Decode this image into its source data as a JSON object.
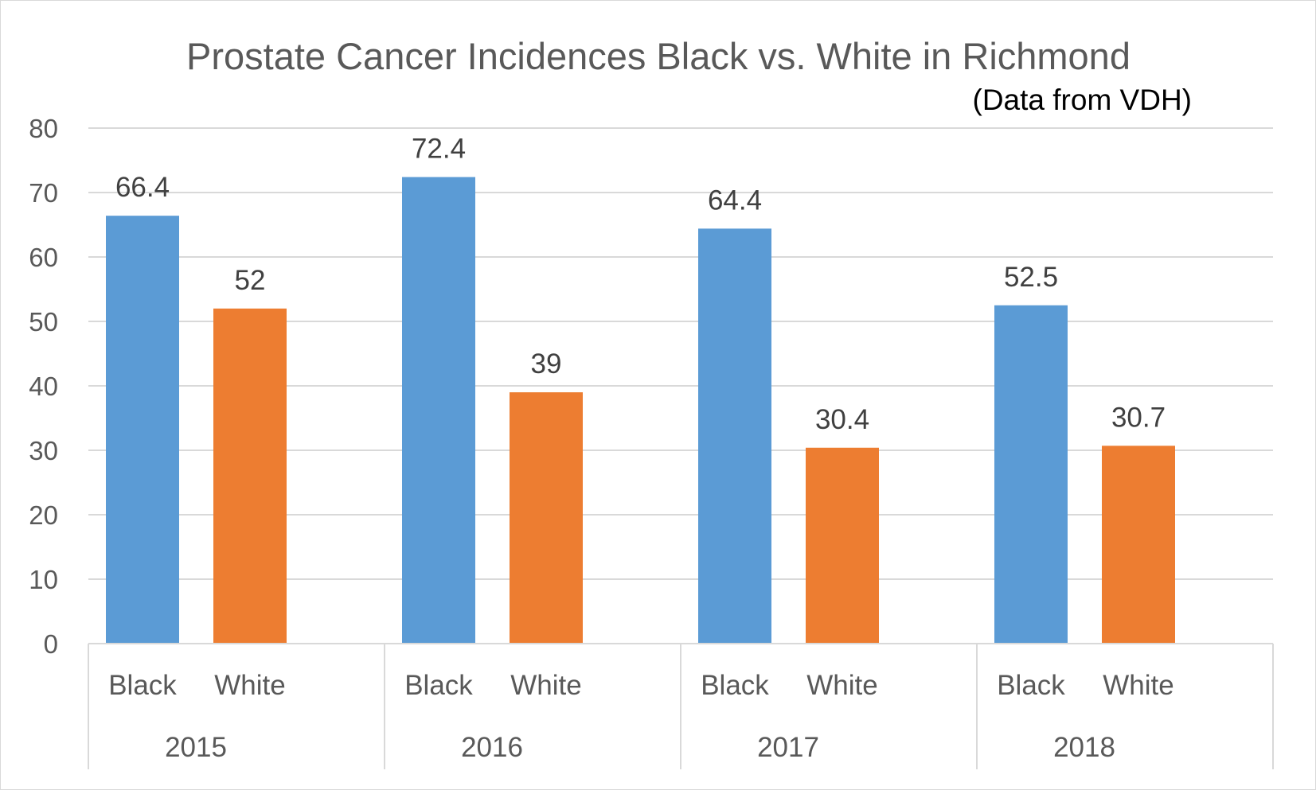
{
  "chart_data": {
    "type": "bar",
    "title": "Prostate Cancer Incidences Black vs. White in Richmond",
    "subtitle": "(Data from VDH)",
    "ylim": [
      0,
      80
    ],
    "yticks": [
      0,
      10,
      20,
      30,
      40,
      50,
      60,
      70,
      80
    ],
    "grid": true,
    "legend": "none",
    "groups": [
      {
        "year": "2015",
        "bars": [
          {
            "category": "Black",
            "value": 66.4,
            "value_label": "66.4"
          },
          {
            "category": "White",
            "value": 52,
            "value_label": "52"
          }
        ]
      },
      {
        "year": "2016",
        "bars": [
          {
            "category": "Black",
            "value": 72.4,
            "value_label": "72.4"
          },
          {
            "category": "White",
            "value": 39,
            "value_label": "39"
          }
        ]
      },
      {
        "year": "2017",
        "bars": [
          {
            "category": "Black",
            "value": 64.4,
            "value_label": "64.4"
          },
          {
            "category": "White",
            "value": 30.4,
            "value_label": "30.4"
          }
        ]
      },
      {
        "year": "2018",
        "bars": [
          {
            "category": "Black",
            "value": 52.5,
            "value_label": "52.5"
          },
          {
            "category": "White",
            "value": 30.7,
            "value_label": "30.7"
          }
        ]
      }
    ],
    "colors": {
      "Black": "#5b9bd5",
      "White": "#ed7d31",
      "grid": "#d9d9d9",
      "axis": "#d9d9d9"
    }
  }
}
